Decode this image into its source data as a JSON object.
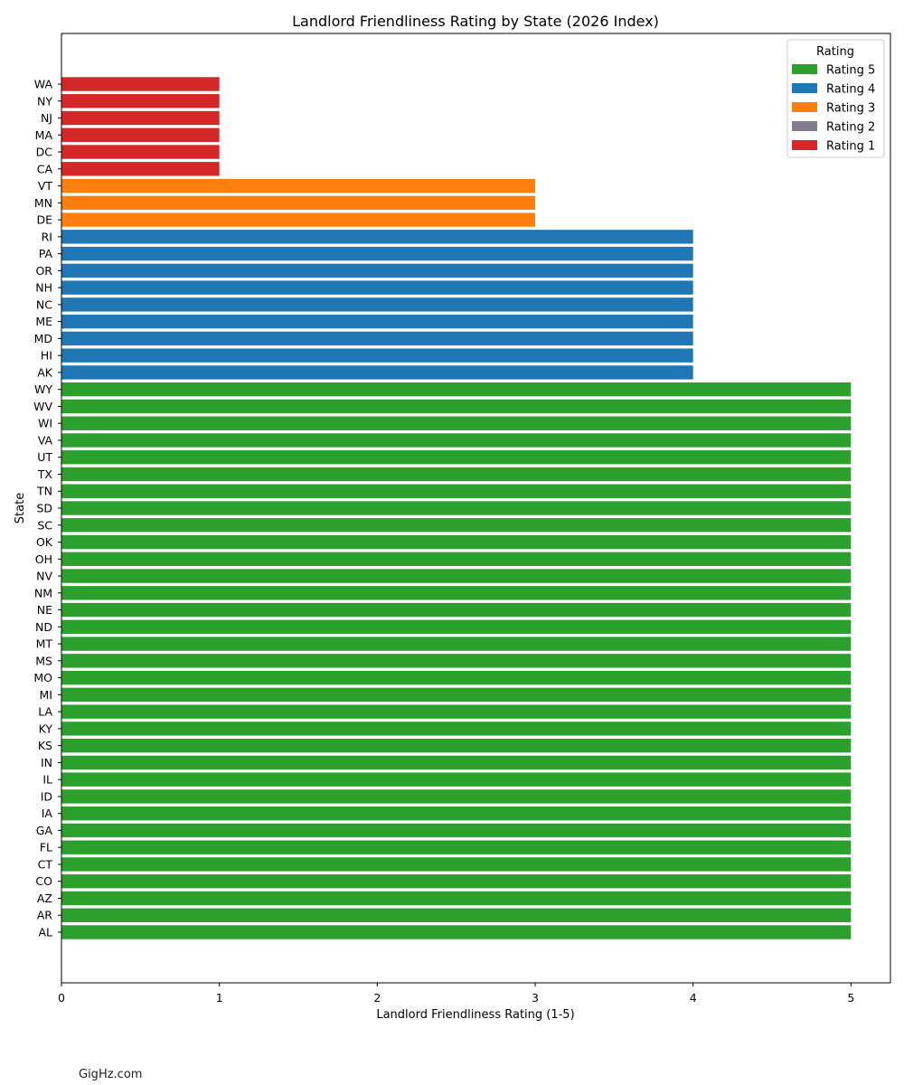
{
  "credit": "GigHz.com",
  "chart_data": {
    "type": "bar",
    "orientation": "horizontal",
    "title": "Landlord Friendliness Rating by State (2026 Index)",
    "xlabel": "Landlord Friendliness Rating (1-5)",
    "ylabel": "State",
    "xlim": [
      0,
      5.25
    ],
    "xticks": [
      0,
      1,
      2,
      3,
      4,
      5
    ],
    "grid": false,
    "legend": {
      "title": "Rating",
      "placement": "top-right",
      "entries": [
        {
          "label": "Rating 5",
          "rating": 5
        },
        {
          "label": "Rating 4",
          "rating": 4
        },
        {
          "label": "Rating 3",
          "rating": 3
        },
        {
          "label": "Rating 2",
          "rating": 2
        },
        {
          "label": "Rating 1",
          "rating": 1
        }
      ]
    },
    "colors": {
      "5": "#2ca02c",
      "4": "#1f77b4",
      "3": "#ff7f0e",
      "2": "#857b8f",
      "1": "#d62728"
    },
    "categories": [
      "AL",
      "AR",
      "AZ",
      "CO",
      "CT",
      "FL",
      "GA",
      "IA",
      "ID",
      "IL",
      "IN",
      "KS",
      "KY",
      "LA",
      "MI",
      "MO",
      "MS",
      "MT",
      "ND",
      "NE",
      "NM",
      "NV",
      "OH",
      "OK",
      "SC",
      "SD",
      "TN",
      "TX",
      "UT",
      "VA",
      "WI",
      "WV",
      "WY",
      "AK",
      "HI",
      "MD",
      "ME",
      "NC",
      "NH",
      "OR",
      "PA",
      "RI",
      "DE",
      "MN",
      "VT",
      "CA",
      "DC",
      "MA",
      "NJ",
      "NY",
      "WA"
    ],
    "values": [
      5,
      5,
      5,
      5,
      5,
      5,
      5,
      5,
      5,
      5,
      5,
      5,
      5,
      5,
      5,
      5,
      5,
      5,
      5,
      5,
      5,
      5,
      5,
      5,
      5,
      5,
      5,
      5,
      5,
      5,
      5,
      5,
      5,
      4,
      4,
      4,
      4,
      4,
      4,
      4,
      4,
      4,
      3,
      3,
      3,
      1,
      1,
      1,
      1,
      1,
      1
    ]
  }
}
